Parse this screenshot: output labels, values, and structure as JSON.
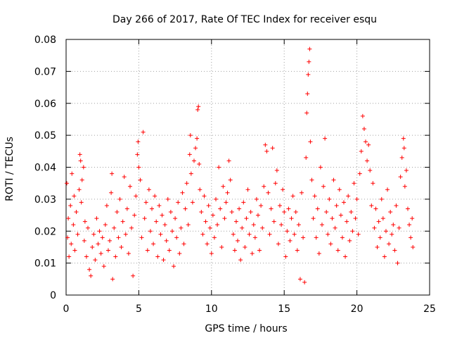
{
  "chart_data": {
    "type": "scatter",
    "title": "Day 266 of 2017, Rate Of TEC Index for receiver esqu",
    "xlabel": "GPS time / hours",
    "ylabel": "ROTI / TECUs",
    "xlim": [
      0,
      25
    ],
    "ylim": [
      0,
      0.08
    ],
    "xticks": [
      0,
      5,
      10,
      15,
      20,
      25
    ],
    "yticks": [
      0,
      0.01,
      0.02,
      0.03,
      0.04,
      0.05,
      0.06,
      0.07,
      0.08
    ],
    "xtick_labels": [
      "0",
      "5",
      "10",
      "15",
      "20",
      "25"
    ],
    "ytick_labels": [
      "0",
      "0.01",
      "0.02",
      "0.03",
      "0.04",
      "0.05",
      "0.06",
      "0.07",
      "0.08"
    ],
    "grid": true,
    "marker": "+",
    "series_color": "#ff0000",
    "series": [
      {
        "name": "ROTI",
        "points": [
          [
            0.05,
            0.035
          ],
          [
            0.1,
            0.018
          ],
          [
            0.15,
            0.024
          ],
          [
            0.2,
            0.012
          ],
          [
            0.3,
            0.028
          ],
          [
            0.35,
            0.016
          ],
          [
            0.4,
            0.038
          ],
          [
            0.5,
            0.022
          ],
          [
            0.55,
            0.031
          ],
          [
            0.6,
            0.014
          ],
          [
            0.7,
            0.026
          ],
          [
            0.8,
            0.019
          ],
          [
            0.9,
            0.033
          ],
          [
            0.95,
            0.044
          ],
          [
            1.0,
            0.042
          ],
          [
            1.05,
            0.029
          ],
          [
            1.1,
            0.036
          ],
          [
            1.2,
            0.04
          ],
          [
            1.25,
            0.017
          ],
          [
            1.3,
            0.023
          ],
          [
            1.4,
            0.012
          ],
          [
            1.5,
            0.021
          ],
          [
            1.6,
            0.008
          ],
          [
            1.7,
            0.006
          ],
          [
            1.8,
            0.015
          ],
          [
            1.9,
            0.019
          ],
          [
            2.0,
            0.011
          ],
          [
            2.1,
            0.024
          ],
          [
            2.2,
            0.016
          ],
          [
            2.3,
            0.02
          ],
          [
            2.4,
            0.013
          ],
          [
            2.5,
            0.018
          ],
          [
            2.6,
            0.009
          ],
          [
            2.7,
            0.022
          ],
          [
            2.8,
            0.028
          ],
          [
            2.9,
            0.014
          ],
          [
            3.0,
            0.017
          ],
          [
            3.1,
            0.032
          ],
          [
            3.15,
            0.038
          ],
          [
            3.2,
            0.005
          ],
          [
            3.3,
            0.021
          ],
          [
            3.4,
            0.012
          ],
          [
            3.5,
            0.026
          ],
          [
            3.6,
            0.018
          ],
          [
            3.7,
            0.03
          ],
          [
            3.8,
            0.015
          ],
          [
            3.9,
            0.023
          ],
          [
            4.0,
            0.037
          ],
          [
            4.1,
            0.019
          ],
          [
            4.2,
            0.027
          ],
          [
            4.3,
            0.013
          ],
          [
            4.4,
            0.034
          ],
          [
            4.5,
            0.021
          ],
          [
            4.6,
            0.006
          ],
          [
            4.7,
            0.025
          ],
          [
            4.8,
            0.031
          ],
          [
            4.9,
            0.044
          ],
          [
            4.95,
            0.048
          ],
          [
            5.0,
            0.04
          ],
          [
            5.1,
            0.036
          ],
          [
            5.2,
            0.018
          ],
          [
            5.3,
            0.051
          ],
          [
            5.4,
            0.024
          ],
          [
            5.5,
            0.029
          ],
          [
            5.6,
            0.014
          ],
          [
            5.7,
            0.033
          ],
          [
            5.8,
            0.02
          ],
          [
            5.9,
            0.027
          ],
          [
            6.0,
            0.016
          ],
          [
            6.1,
            0.031
          ],
          [
            6.2,
            0.023
          ],
          [
            6.3,
            0.012
          ],
          [
            6.4,
            0.028
          ],
          [
            6.5,
            0.019
          ],
          [
            6.6,
            0.025
          ],
          [
            6.7,
            0.011
          ],
          [
            6.8,
            0.022
          ],
          [
            6.9,
            0.017
          ],
          [
            7.0,
            0.03
          ],
          [
            7.1,
            0.014
          ],
          [
            7.2,
            0.026
          ],
          [
            7.3,
            0.02
          ],
          [
            7.4,
            0.009
          ],
          [
            7.5,
            0.024
          ],
          [
            7.6,
            0.018
          ],
          [
            7.7,
            0.029
          ],
          [
            7.8,
            0.013
          ],
          [
            7.9,
            0.021
          ],
          [
            8.0,
            0.032
          ],
          [
            8.1,
            0.016
          ],
          [
            8.2,
            0.027
          ],
          [
            8.3,
            0.035
          ],
          [
            8.4,
            0.022
          ],
          [
            8.5,
            0.044
          ],
          [
            8.55,
            0.05
          ],
          [
            8.6,
            0.038
          ],
          [
            8.7,
            0.029
          ],
          [
            8.8,
            0.042
          ],
          [
            8.9,
            0.046
          ],
          [
            9.0,
            0.049
          ],
          [
            9.05,
            0.058
          ],
          [
            9.1,
            0.059
          ],
          [
            9.15,
            0.041
          ],
          [
            9.2,
            0.033
          ],
          [
            9.3,
            0.026
          ],
          [
            9.4,
            0.019
          ],
          [
            9.5,
            0.031
          ],
          [
            9.6,
            0.023
          ],
          [
            9.7,
            0.016
          ],
          [
            9.8,
            0.028
          ],
          [
            9.9,
            0.021
          ],
          [
            10.0,
            0.013
          ],
          [
            10.1,
            0.025
          ],
          [
            10.2,
            0.018
          ],
          [
            10.3,
            0.03
          ],
          [
            10.4,
            0.022
          ],
          [
            10.5,
            0.04
          ],
          [
            10.6,
            0.027
          ],
          [
            10.7,
            0.015
          ],
          [
            10.8,
            0.034
          ],
          [
            10.9,
            0.024
          ],
          [
            11.0,
            0.029
          ],
          [
            11.1,
            0.032
          ],
          [
            11.2,
            0.042
          ],
          [
            11.3,
            0.036
          ],
          [
            11.4,
            0.026
          ],
          [
            11.5,
            0.019
          ],
          [
            11.6,
            0.014
          ],
          [
            11.7,
            0.023
          ],
          [
            11.8,
            0.017
          ],
          [
            11.9,
            0.027
          ],
          [
            12.0,
            0.011
          ],
          [
            12.1,
            0.021
          ],
          [
            12.2,
            0.029
          ],
          [
            12.3,
            0.015
          ],
          [
            12.4,
            0.024
          ],
          [
            12.5,
            0.033
          ],
          [
            12.6,
            0.019
          ],
          [
            12.7,
            0.026
          ],
          [
            12.8,
            0.013
          ],
          [
            12.9,
            0.022
          ],
          [
            13.0,
            0.018
          ],
          [
            13.1,
            0.03
          ],
          [
            13.2,
            0.025
          ],
          [
            13.3,
            0.014
          ],
          [
            13.4,
            0.028
          ],
          [
            13.5,
            0.021
          ],
          [
            13.6,
            0.034
          ],
          [
            13.7,
            0.047
          ],
          [
            13.8,
            0.045
          ],
          [
            13.9,
            0.032
          ],
          [
            14.0,
            0.019
          ],
          [
            14.1,
            0.027
          ],
          [
            14.2,
            0.046
          ],
          [
            14.3,
            0.023
          ],
          [
            14.4,
            0.035
          ],
          [
            14.5,
            0.039
          ],
          [
            14.6,
            0.016
          ],
          [
            14.7,
            0.028
          ],
          [
            14.8,
            0.022
          ],
          [
            14.9,
            0.033
          ],
          [
            15.0,
            0.026
          ],
          [
            15.1,
            0.012
          ],
          [
            15.2,
            0.02
          ],
          [
            15.3,
            0.027
          ],
          [
            15.4,
            0.017
          ],
          [
            15.5,
            0.024
          ],
          [
            15.6,
            0.031
          ],
          [
            15.7,
            0.019
          ],
          [
            15.8,
            0.026
          ],
          [
            15.9,
            0.014
          ],
          [
            16.0,
            0.022
          ],
          [
            16.1,
            0.005
          ],
          [
            16.2,
            0.032
          ],
          [
            16.3,
            0.018
          ],
          [
            16.4,
            0.004
          ],
          [
            16.5,
            0.043
          ],
          [
            16.55,
            0.057
          ],
          [
            16.6,
            0.063
          ],
          [
            16.65,
            0.069
          ],
          [
            16.7,
            0.073
          ],
          [
            16.75,
            0.077
          ],
          [
            16.8,
            0.048
          ],
          [
            16.9,
            0.036
          ],
          [
            17.0,
            0.024
          ],
          [
            17.1,
            0.031
          ],
          [
            17.2,
            0.018
          ],
          [
            17.3,
            0.027
          ],
          [
            17.4,
            0.013
          ],
          [
            17.5,
            0.04
          ],
          [
            17.6,
            0.022
          ],
          [
            17.7,
            0.034
          ],
          [
            17.8,
            0.049
          ],
          [
            17.9,
            0.026
          ],
          [
            18.0,
            0.019
          ],
          [
            18.1,
            0.03
          ],
          [
            18.2,
            0.016
          ],
          [
            18.3,
            0.024
          ],
          [
            18.4,
            0.036
          ],
          [
            18.5,
            0.021
          ],
          [
            18.6,
            0.028
          ],
          [
            18.7,
            0.014
          ],
          [
            18.8,
            0.033
          ],
          [
            18.9,
            0.025
          ],
          [
            19.0,
            0.018
          ],
          [
            19.1,
            0.029
          ],
          [
            19.2,
            0.012
          ],
          [
            19.3,
            0.023
          ],
          [
            19.4,
            0.031
          ],
          [
            19.5,
            0.017
          ],
          [
            19.6,
            0.026
          ],
          [
            19.7,
            0.02
          ],
          [
            19.8,
            0.035
          ],
          [
            19.9,
            0.024
          ],
          [
            20.0,
            0.03
          ],
          [
            20.1,
            0.019
          ],
          [
            20.2,
            0.038
          ],
          [
            20.3,
            0.045
          ],
          [
            20.4,
            0.056
          ],
          [
            20.5,
            0.052
          ],
          [
            20.6,
            0.048
          ],
          [
            20.7,
            0.042
          ],
          [
            20.8,
            0.047
          ],
          [
            20.9,
            0.039
          ],
          [
            21.0,
            0.028
          ],
          [
            21.1,
            0.035
          ],
          [
            21.2,
            0.021
          ],
          [
            21.3,
            0.027
          ],
          [
            21.4,
            0.015
          ],
          [
            21.5,
            0.023
          ],
          [
            21.6,
            0.018
          ],
          [
            21.7,
            0.03
          ],
          [
            21.8,
            0.024
          ],
          [
            21.9,
            0.012
          ],
          [
            22.0,
            0.02
          ],
          [
            22.1,
            0.033
          ],
          [
            22.2,
            0.016
          ],
          [
            22.3,
            0.026
          ],
          [
            22.4,
            0.019
          ],
          [
            22.5,
            0.022
          ],
          [
            22.6,
            0.014
          ],
          [
            22.7,
            0.028
          ],
          [
            22.8,
            0.01
          ],
          [
            22.9,
            0.021
          ],
          [
            23.0,
            0.037
          ],
          [
            23.1,
            0.043
          ],
          [
            23.2,
            0.049
          ],
          [
            23.25,
            0.046
          ],
          [
            23.3,
            0.034
          ],
          [
            23.4,
            0.039
          ],
          [
            23.5,
            0.027
          ],
          [
            23.6,
            0.022
          ],
          [
            23.7,
            0.018
          ],
          [
            23.8,
            0.024
          ],
          [
            23.85,
            0.015
          ]
        ]
      }
    ]
  }
}
